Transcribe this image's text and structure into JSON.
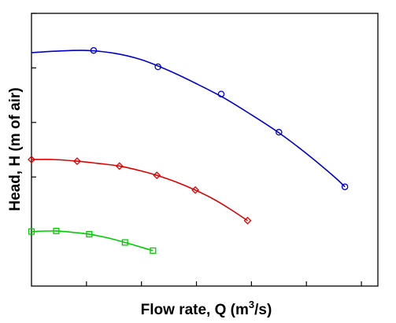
{
  "chart_data": {
    "type": "line",
    "title": "",
    "xlabel": "Flow rate, Q (m",
    "xlabel_sup": "3",
    "xlabel_suffix": "/s)",
    "ylabel": "Head, H (m of air)",
    "xlim": [
      0,
      6.3
    ],
    "ylim": [
      0,
      5.0
    ],
    "xticks": [
      1,
      2,
      3,
      4,
      5,
      6
    ],
    "yticks": [
      1,
      2,
      3,
      4,
      5
    ],
    "show_tick_labels": false,
    "grid": false,
    "series": [
      {
        "color": "#0000cc",
        "marker": "circle",
        "points": [
          [
            1.13,
            4.32
          ],
          [
            2.3,
            4.02
          ],
          [
            3.45,
            3.52
          ],
          [
            4.5,
            2.82
          ],
          [
            5.7,
            1.82
          ]
        ],
        "curve": [
          [
            0.0,
            4.28
          ],
          [
            0.5,
            4.31
          ],
          [
            1.0,
            4.32
          ],
          [
            1.5,
            4.27
          ],
          [
            2.0,
            4.15
          ],
          [
            2.5,
            3.95
          ],
          [
            3.0,
            3.71
          ],
          [
            3.5,
            3.45
          ],
          [
            4.0,
            3.14
          ],
          [
            4.5,
            2.81
          ],
          [
            5.0,
            2.43
          ],
          [
            5.5,
            2.01
          ],
          [
            5.7,
            1.82
          ]
        ]
      },
      {
        "color": "#dd0000",
        "marker": "diamond",
        "points": [
          [
            0.0,
            2.32
          ],
          [
            0.83,
            2.29
          ],
          [
            1.6,
            2.2
          ],
          [
            2.28,
            2.03
          ],
          [
            2.98,
            1.76
          ],
          [
            3.93,
            1.2
          ]
        ],
        "curve": [
          [
            0.0,
            2.32
          ],
          [
            0.4,
            2.32
          ],
          [
            0.83,
            2.29
          ],
          [
            1.2,
            2.25
          ],
          [
            1.6,
            2.2
          ],
          [
            2.0,
            2.11
          ],
          [
            2.28,
            2.03
          ],
          [
            2.6,
            1.92
          ],
          [
            2.98,
            1.76
          ],
          [
            3.3,
            1.6
          ],
          [
            3.6,
            1.42
          ],
          [
            3.93,
            1.2
          ]
        ]
      },
      {
        "color": "#00cc00",
        "marker": "square",
        "points": [
          [
            0.0,
            1.0
          ],
          [
            0.45,
            1.01
          ],
          [
            1.05,
            0.95
          ],
          [
            1.7,
            0.8
          ],
          [
            2.21,
            0.65
          ]
        ],
        "curve": [
          [
            0.0,
            1.0
          ],
          [
            0.45,
            1.01
          ],
          [
            0.8,
            0.98
          ],
          [
            1.05,
            0.95
          ],
          [
            1.4,
            0.88
          ],
          [
            1.7,
            0.8
          ],
          [
            2.0,
            0.71
          ],
          [
            2.21,
            0.65
          ]
        ]
      }
    ]
  }
}
